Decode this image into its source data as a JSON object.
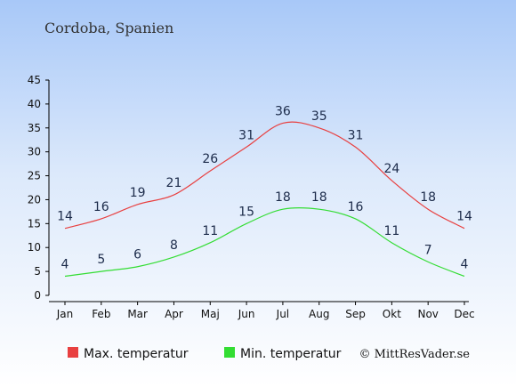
{
  "chart_data": {
    "type": "line",
    "title": "Cordoba, Spanien",
    "categories": [
      "Jan",
      "Feb",
      "Mar",
      "Apr",
      "Maj",
      "Jun",
      "Jul",
      "Aug",
      "Sep",
      "Okt",
      "Nov",
      "Dec"
    ],
    "series": [
      {
        "name": "Max. temperatur",
        "color": "#e84040",
        "values": [
          14,
          16,
          19,
          21,
          26,
          31,
          36,
          35,
          31,
          24,
          18,
          14
        ]
      },
      {
        "name": "Min. temperatur",
        "color": "#33dd33",
        "values": [
          4,
          5,
          6,
          8,
          11,
          15,
          18,
          18,
          16,
          11,
          7,
          4
        ]
      }
    ],
    "ylim": [
      0,
      45
    ],
    "yticks": [
      0,
      5,
      10,
      15,
      20,
      25,
      30,
      35,
      40,
      45
    ],
    "grid": false,
    "legend": "bottom-left"
  },
  "copyright": "© MittResVader.se"
}
